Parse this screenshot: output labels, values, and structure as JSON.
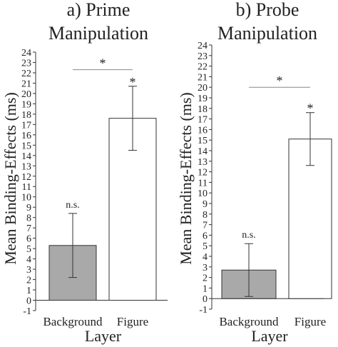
{
  "chart_data": [
    {
      "type": "bar",
      "title_lines": [
        "a) Prime",
        "Manipulation"
      ],
      "xlabel": "Layer",
      "ylabel": "Mean Binding-Effects (ms)",
      "ylim": [
        -1,
        24
      ],
      "yticks": [
        -1,
        0,
        1,
        2,
        3,
        4,
        5,
        6,
        7,
        8,
        9,
        10,
        11,
        12,
        13,
        14,
        15,
        16,
        17,
        18,
        19,
        20,
        21,
        22,
        23,
        24
      ],
      "categories": [
        "Background",
        "Figure"
      ],
      "values": [
        5.3,
        17.6
      ],
      "error_low": [
        2.2,
        14.5
      ],
      "error_high": [
        8.4,
        20.7
      ],
      "bar_colors": [
        "#a9a9a9",
        "#ffffff"
      ],
      "bar_labels": [
        "n.s.",
        "*"
      ],
      "comparison": {
        "label": "*",
        "y": 22.3
      }
    },
    {
      "type": "bar",
      "title_lines": [
        "b) Probe",
        "Manipulation"
      ],
      "xlabel": "Layer",
      "ylabel": "Mean Binding-Effects (ms)",
      "ylim": [
        -1,
        24
      ],
      "yticks": [
        -1,
        0,
        1,
        2,
        3,
        4,
        5,
        6,
        7,
        8,
        9,
        10,
        11,
        12,
        13,
        14,
        15,
        16,
        17,
        18,
        19,
        20,
        21,
        22,
        23,
        24
      ],
      "categories": [
        "Background",
        "Figure"
      ],
      "values": [
        2.7,
        15.1
      ],
      "error_low": [
        0.2,
        12.6
      ],
      "error_high": [
        5.2,
        17.6
      ],
      "bar_colors": [
        "#a9a9a9",
        "#ffffff"
      ],
      "bar_labels": [
        "n.s.",
        "*"
      ],
      "comparison": {
        "label": "*",
        "y": 20.0
      }
    }
  ]
}
